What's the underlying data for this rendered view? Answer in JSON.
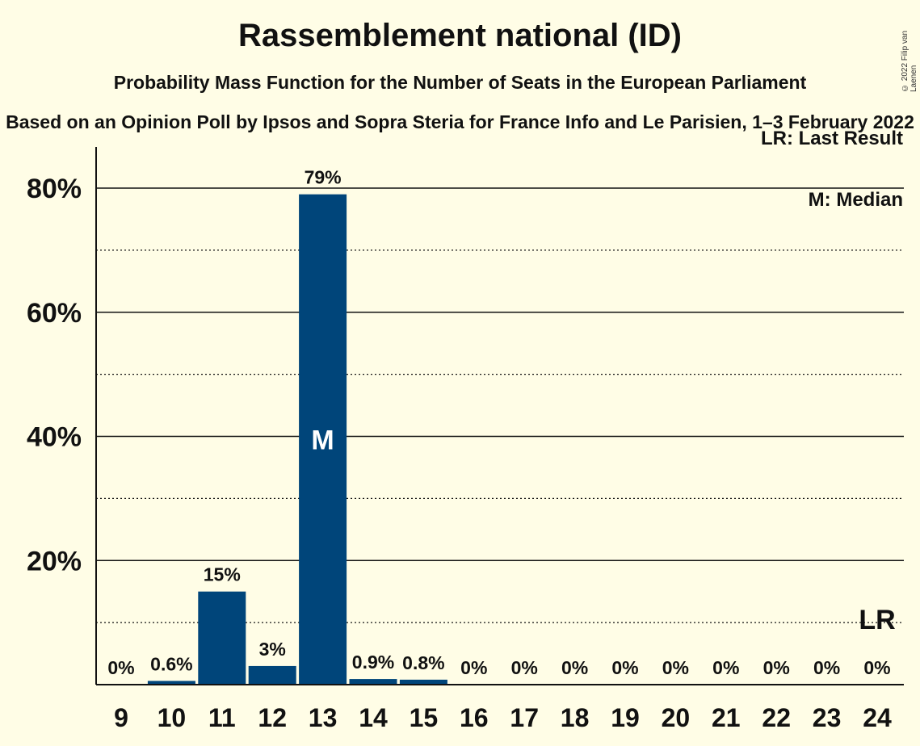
{
  "header": {
    "title": "Rassemblement national (ID)",
    "subtitle": "Probability Mass Function for the Number of Seats in the European Parliament",
    "source": "Based on an Opinion Poll by Ipsos and Sopra Steria for France Info and Le Parisien, 1–3 February 2022",
    "copyright": "© 2022 Filip van Laenen"
  },
  "legend": {
    "last_result": "LR: Last Result",
    "median": "M: Median"
  },
  "colors": {
    "bar": "#00457a",
    "background": "#fffde6",
    "text": "#111111"
  },
  "chart_data": {
    "type": "bar",
    "title": "Rassemblement national (ID)",
    "xlabel": "",
    "ylabel": "",
    "categories": [
      "9",
      "10",
      "11",
      "12",
      "13",
      "14",
      "15",
      "16",
      "17",
      "18",
      "19",
      "20",
      "21",
      "22",
      "23",
      "24"
    ],
    "values": [
      0,
      0.6,
      15,
      3,
      79,
      0.9,
      0.8,
      0,
      0,
      0,
      0,
      0,
      0,
      0,
      0,
      0
    ],
    "value_labels": [
      "0%",
      "0.6%",
      "15%",
      "3%",
      "79%",
      "0.9%",
      "0.8%",
      "0%",
      "0%",
      "0%",
      "0%",
      "0%",
      "0%",
      "0%",
      "0%",
      "0%"
    ],
    "ylim": [
      0,
      86
    ],
    "yticks": [
      20,
      40,
      60,
      80
    ],
    "ytick_labels": [
      "20%",
      "40%",
      "60%",
      "80%"
    ],
    "minor_gridlines": [
      10,
      30,
      50,
      70
    ],
    "median_category": "13",
    "median_marker": "M",
    "last_result_category": "24",
    "last_result_marker": "LR",
    "last_result_level": 10,
    "legend_position": "top-right"
  }
}
